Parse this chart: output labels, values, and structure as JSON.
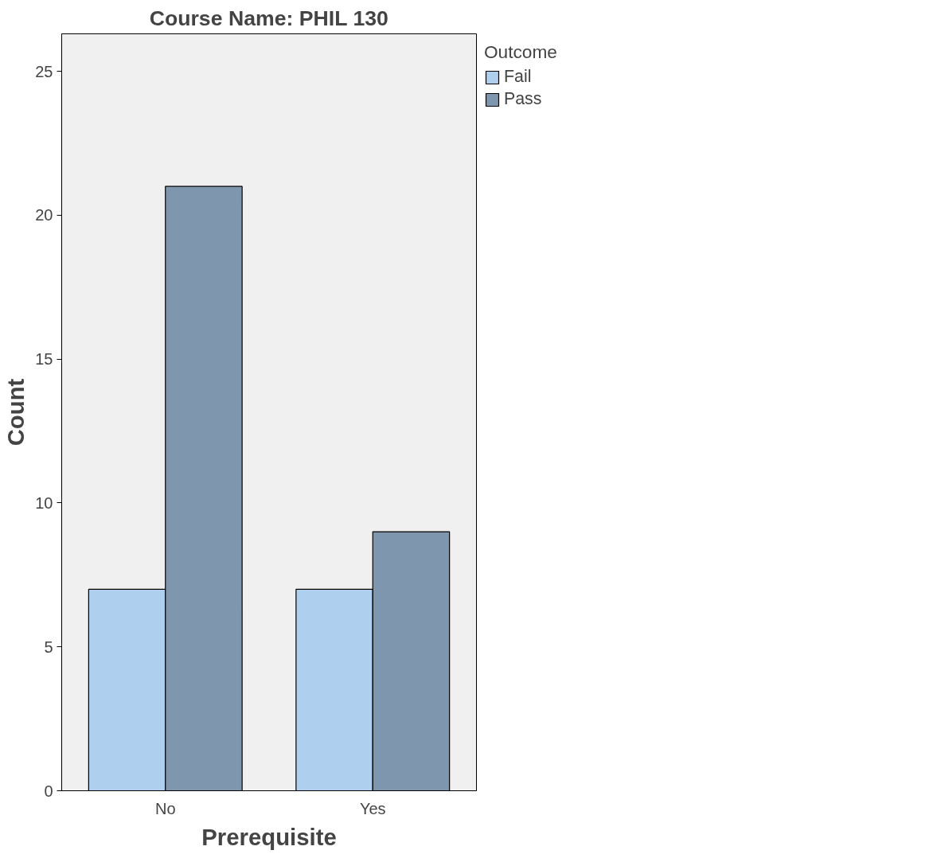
{
  "chart_data": {
    "type": "bar",
    "title": "Course Name: PHIL 130",
    "xlabel": "Prerequisite",
    "ylabel": "Count",
    "legend_title": "Outcome",
    "categories": [
      "No",
      "Yes"
    ],
    "series": [
      {
        "name": "Fail",
        "color": "#aecfee",
        "values": [
          7,
          7
        ]
      },
      {
        "name": "Pass",
        "color": "#7f97ae",
        "values": [
          21,
          9
        ]
      }
    ],
    "ylim": [
      0,
      26.3
    ],
    "yticks": [
      0,
      5,
      10,
      15,
      20,
      25
    ],
    "grid": false,
    "legend": "top right"
  }
}
